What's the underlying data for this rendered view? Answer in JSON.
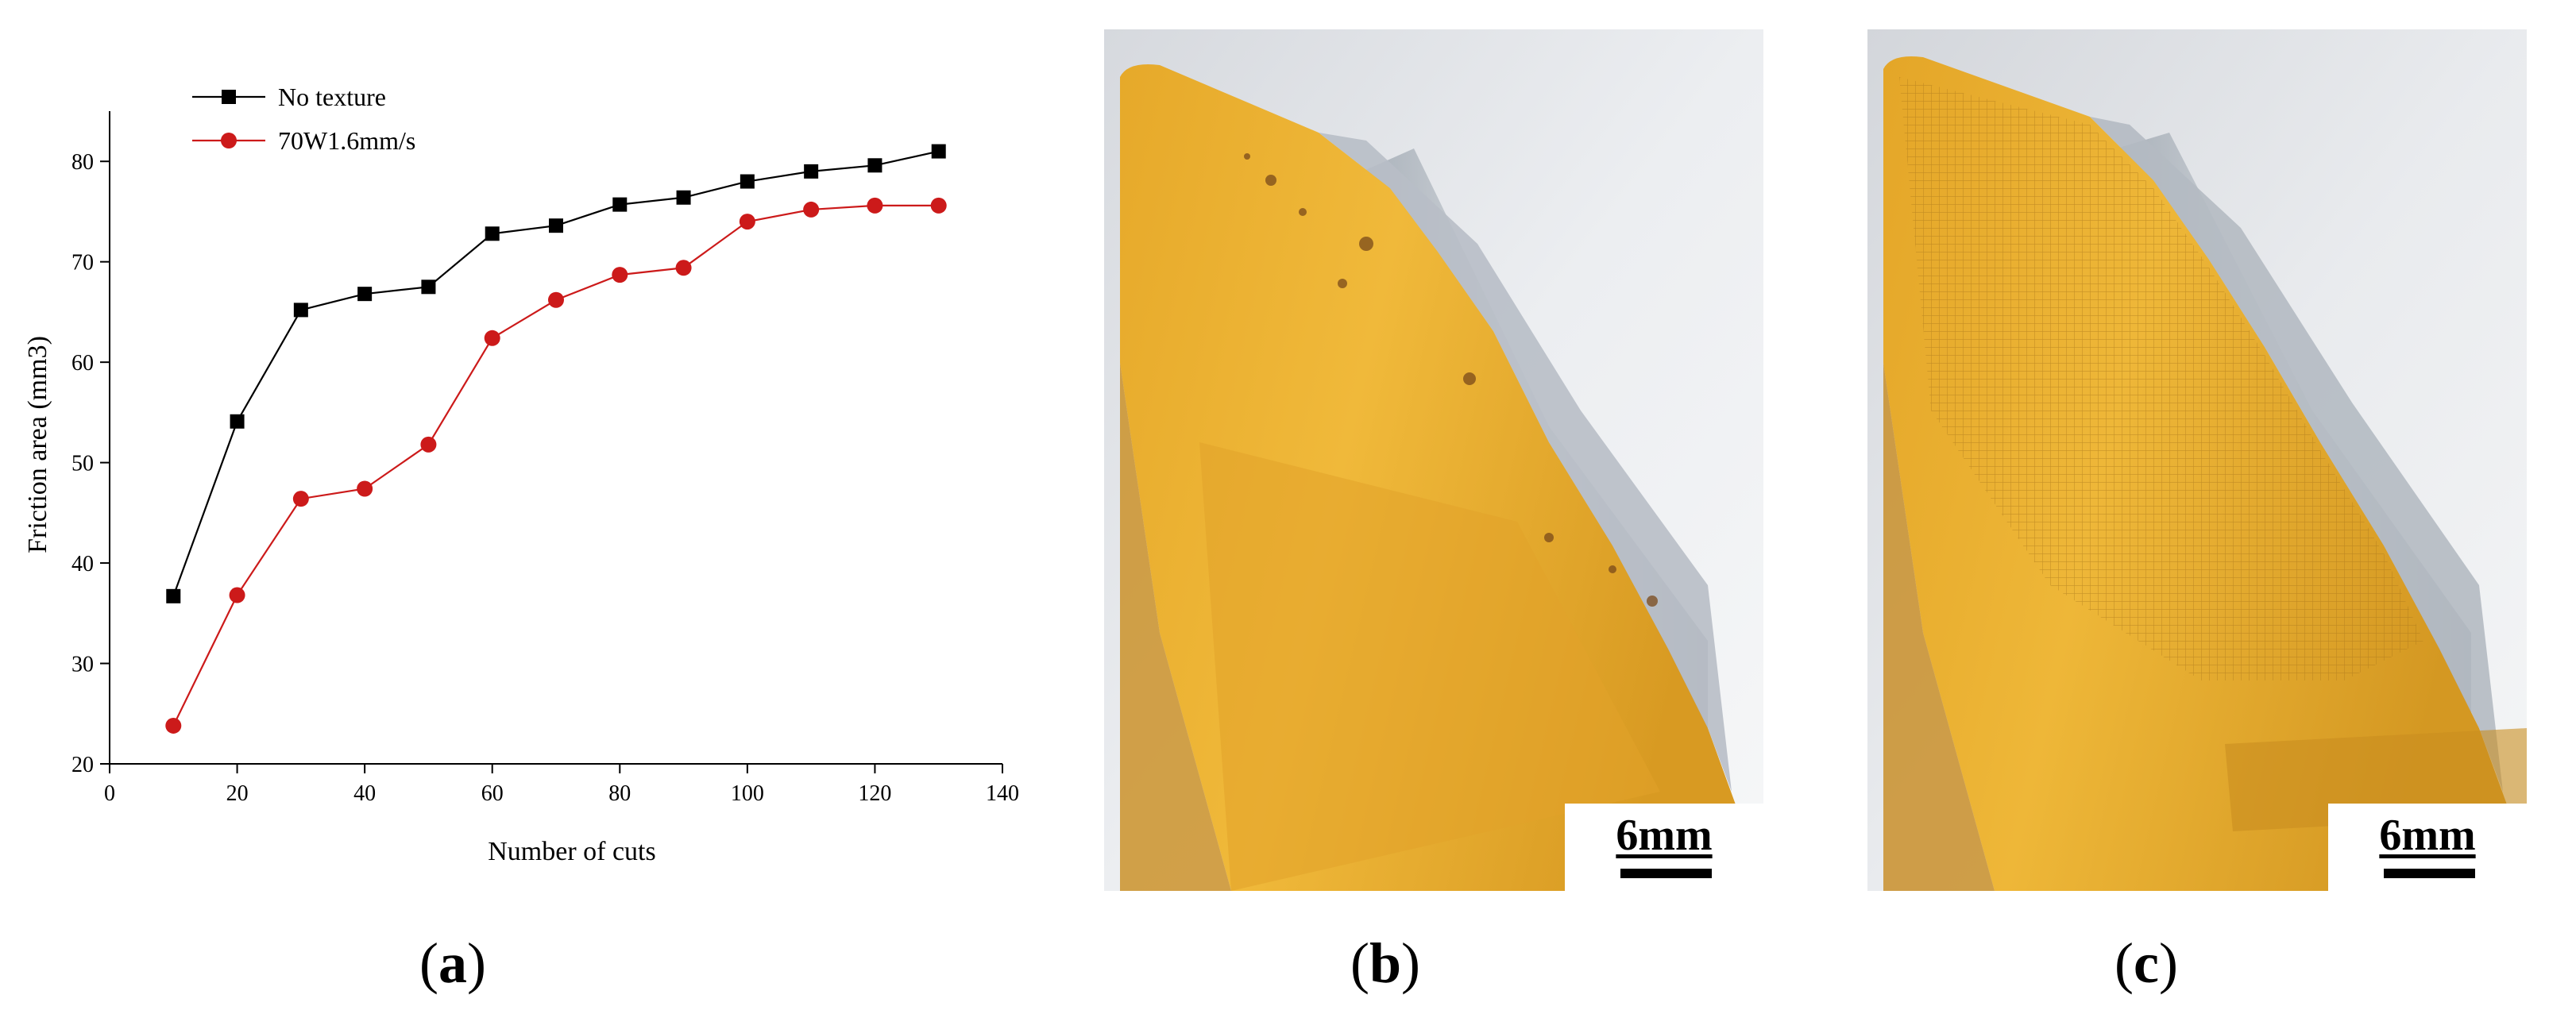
{
  "chart_data": {
    "type": "line",
    "xlabel": "Number of cuts",
    "ylabel": "Friction area (mm3)",
    "xlim": [
      0,
      140
    ],
    "ylim": [
      20,
      85
    ],
    "xticks": [
      0,
      20,
      40,
      60,
      80,
      100,
      120,
      140
    ],
    "yticks": [
      20,
      30,
      40,
      50,
      60,
      70,
      80
    ],
    "grid": false,
    "legend_position": "top-left",
    "x": [
      10,
      20,
      30,
      40,
      50,
      60,
      70,
      80,
      90,
      100,
      110,
      120,
      130
    ],
    "series": [
      {
        "name": "No texture",
        "color": "#000000",
        "marker": "square",
        "values": [
          36.7,
          54.1,
          65.2,
          66.8,
          67.5,
          72.8,
          73.6,
          75.7,
          76.4,
          78.0,
          79.0,
          79.6,
          81.0
        ]
      },
      {
        "name": "70W1.6mm/s",
        "color": "#cc1a1a",
        "marker": "circle",
        "values": [
          23.8,
          36.8,
          46.4,
          47.4,
          51.8,
          62.4,
          66.2,
          68.7,
          69.4,
          74.0,
          75.2,
          75.6,
          75.6
        ]
      }
    ]
  },
  "photos": {
    "b": {
      "scale_label": "6mm"
    },
    "c": {
      "scale_label": "6mm"
    }
  },
  "labels": {
    "a": {
      "open": "(",
      "letter": "a",
      "close": ")"
    },
    "b": {
      "open": "(",
      "letter": "b",
      "close": ")"
    },
    "c": {
      "open": "(",
      "letter": "c",
      "close": ")"
    }
  }
}
